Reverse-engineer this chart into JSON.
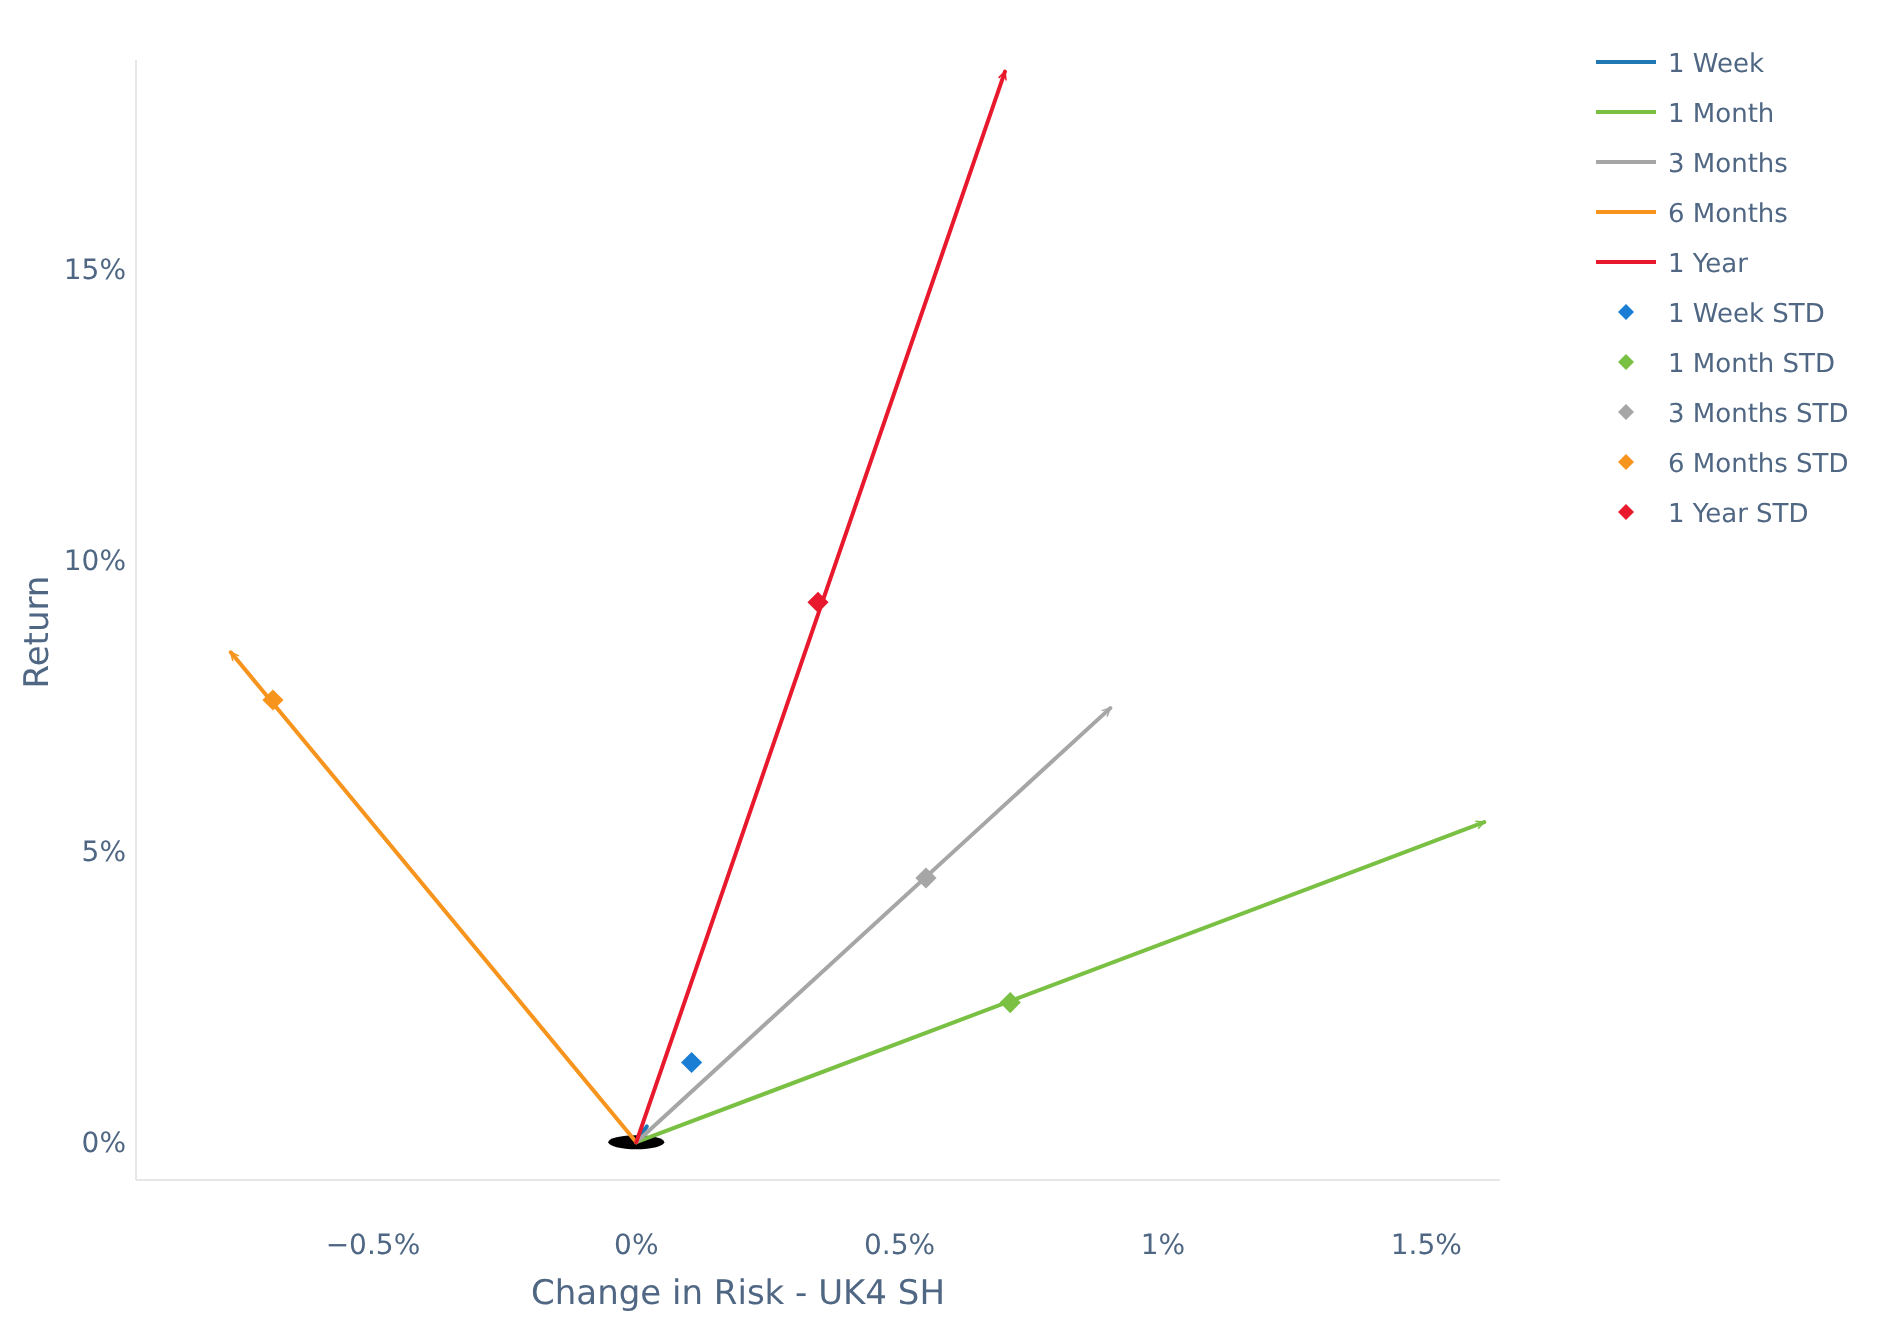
{
  "chart_data": {
    "type": "line",
    "xlabel": "Change in Risk - UK4 SH",
    "ylabel": "Return",
    "xlim": [
      -0.95,
      1.64
    ],
    "ylim": [
      -0.65,
      18.6
    ],
    "xticks": [
      {
        "value": -0.5,
        "label": "−0.5%"
      },
      {
        "value": 0,
        "label": "0%"
      },
      {
        "value": 0.5,
        "label": "0.5%"
      },
      {
        "value": 1,
        "label": "1%"
      },
      {
        "value": 1.5,
        "label": "1.5%"
      }
    ],
    "yticks": [
      {
        "value": 0,
        "label": "0%"
      },
      {
        "value": 5,
        "label": "5%"
      },
      {
        "value": 10,
        "label": "10%"
      },
      {
        "value": 15,
        "label": "15%"
      }
    ],
    "grid": false,
    "legend": "top right",
    "line_style": "solid",
    "series": [
      {
        "name": "1 Week",
        "color": "#1f77b4",
        "x": [
          0,
          0.02
        ],
        "values": [
          0,
          0.27
        ]
      },
      {
        "name": "1 Month",
        "color": "#79c043",
        "x": [
          0,
          1.61
        ],
        "values": [
          0,
          5.5
        ]
      },
      {
        "name": "3 Months",
        "color": "#a6a6a6",
        "x": [
          0,
          0.9
        ],
        "values": [
          0,
          7.46
        ]
      },
      {
        "name": "6 Months",
        "color": "#f7941d",
        "x": [
          0,
          -0.77
        ],
        "values": [
          0,
          8.42
        ]
      },
      {
        "name": "1 Year",
        "color": "#e8192c",
        "x": [
          0,
          0.7
        ],
        "values": [
          0,
          18.4
        ]
      },
      {
        "name": "1 Week STD",
        "type": "scatter",
        "marker": "diamond",
        "color": "#1a7fd4",
        "x": [
          0.105
        ],
        "values": [
          1.37
        ]
      },
      {
        "name": "1 Month STD",
        "type": "scatter",
        "marker": "diamond",
        "color": "#79c043",
        "x": [
          0.71
        ],
        "values": [
          2.4
        ]
      },
      {
        "name": "3 Months STD",
        "type": "scatter",
        "marker": "diamond",
        "color": "#a6a6a6",
        "x": [
          0.55
        ],
        "values": [
          4.54
        ]
      },
      {
        "name": "6 Months STD",
        "type": "scatter",
        "marker": "diamond",
        "color": "#f7941d",
        "x": [
          -0.69
        ],
        "values": [
          7.6
        ]
      },
      {
        "name": "1 Year STD",
        "type": "scatter",
        "marker": "diamond",
        "color": "#e8192c",
        "x": [
          0.345
        ],
        "values": [
          9.28
        ]
      }
    ]
  }
}
